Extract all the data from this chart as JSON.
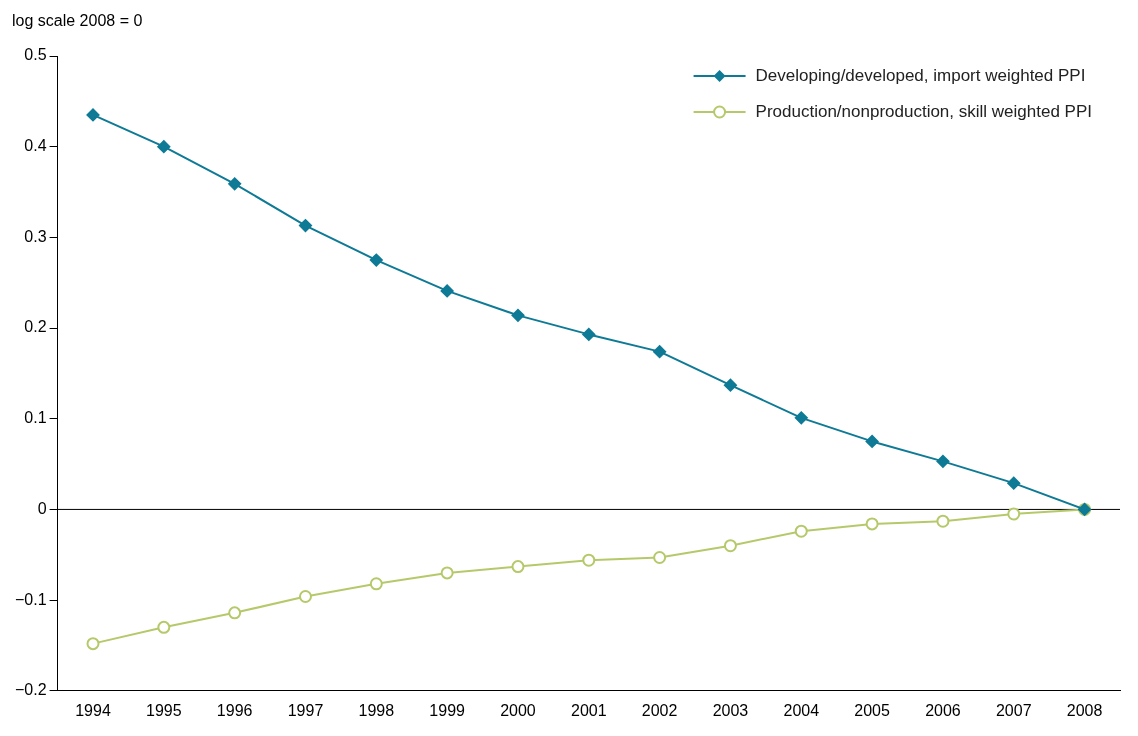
{
  "chart_data": {
    "type": "line",
    "ylabel": "log scale 2008 = 0",
    "categories": [
      "1994",
      "1995",
      "1996",
      "1997",
      "1998",
      "1999",
      "2000",
      "2001",
      "2002",
      "2003",
      "2004",
      "2005",
      "2006",
      "2007",
      "2008"
    ],
    "series": [
      {
        "name": "Developing/developed, import weighted PPI",
        "color": "#0e7a96",
        "marker": "diamond",
        "values": [
          0.435,
          0.4,
          0.359,
          0.313,
          0.275,
          0.241,
          0.214,
          0.193,
          0.174,
          0.137,
          0.101,
          0.075,
          0.053,
          0.029,
          0
        ]
      },
      {
        "name": "Production/nonproduction, skill weighted PPI",
        "color": "#b5c96a",
        "marker": "circle",
        "values": [
          -0.148,
          -0.13,
          -0.114,
          -0.096,
          -0.082,
          -0.07,
          -0.063,
          -0.056,
          -0.053,
          -0.04,
          -0.024,
          -0.016,
          -0.013,
          -0.005,
          0
        ]
      }
    ],
    "ylim": [
      -0.2,
      0.5
    ],
    "yticks": [
      {
        "value": -0.2,
        "label": "−0.2"
      },
      {
        "value": -0.1,
        "label": "−0.1"
      },
      0,
      0.1,
      0.2,
      0.3,
      0.4,
      0.5
    ],
    "ref_lines": [
      {
        "axis": "y",
        "value": 0,
        "label": null,
        "color": "#000000"
      }
    ],
    "grid": false,
    "legend": "top right",
    "line_style": "solid"
  }
}
